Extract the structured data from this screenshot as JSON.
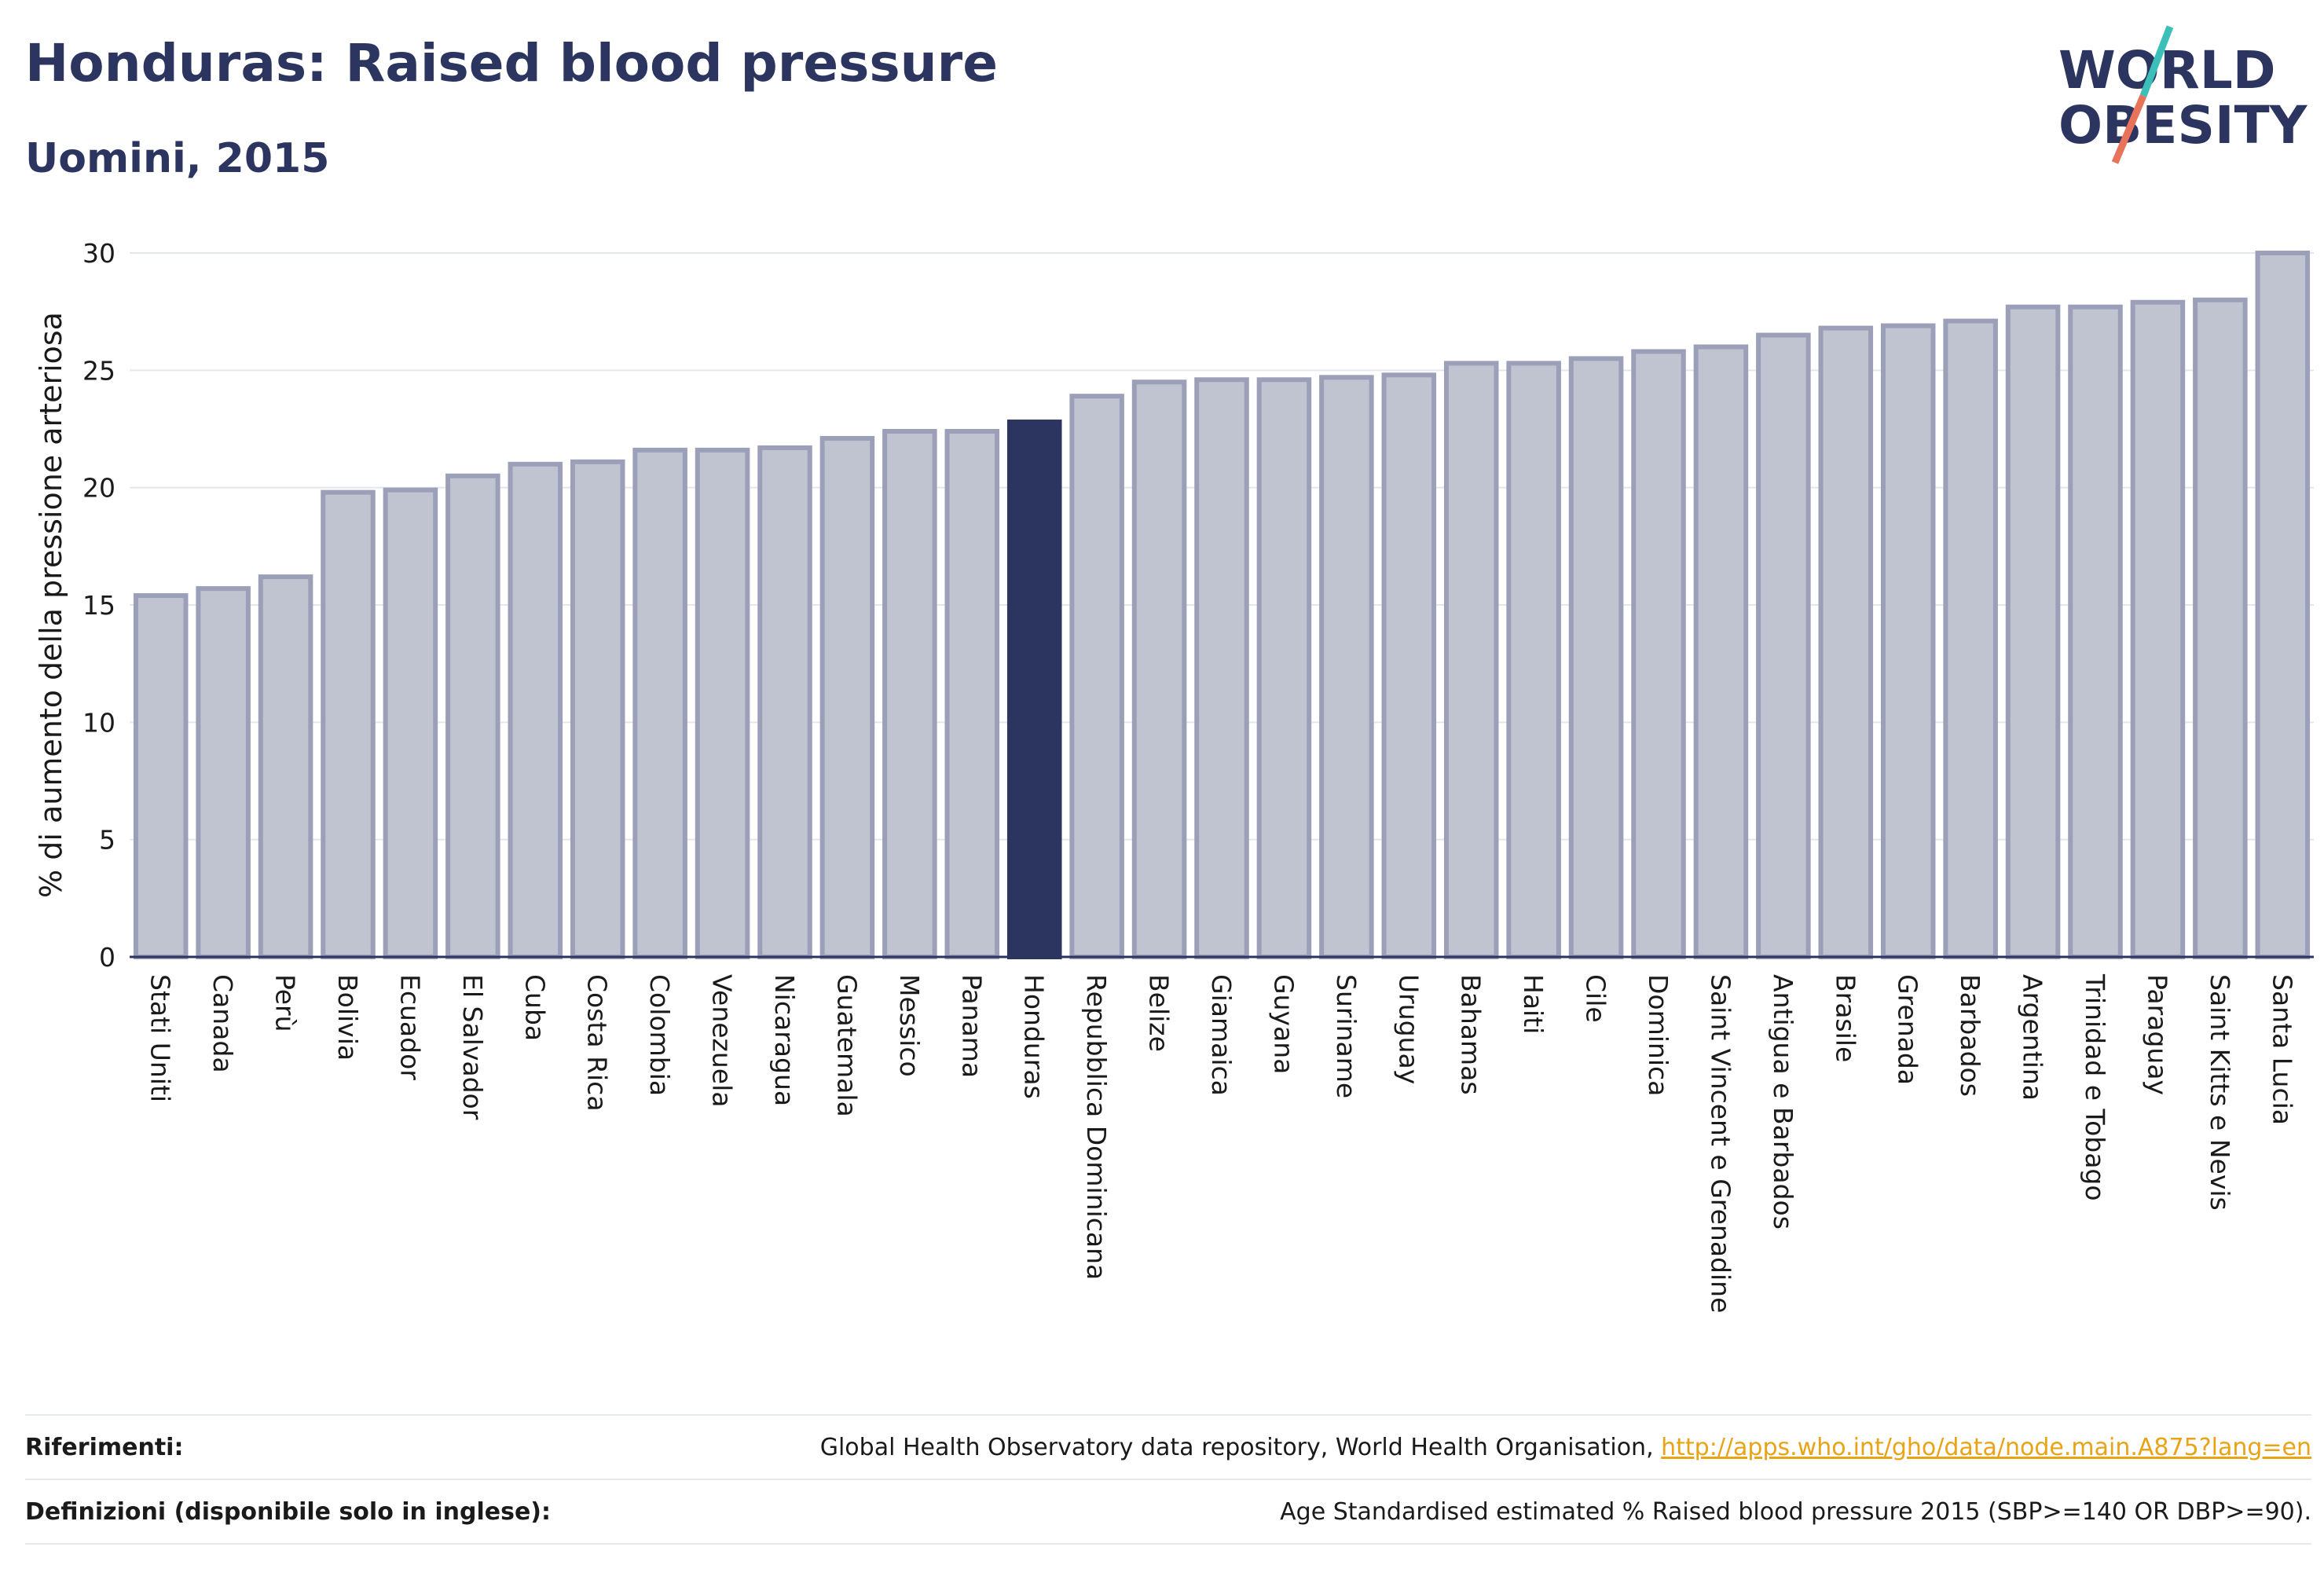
{
  "header": {
    "title": "Honduras: Raised blood pressure",
    "subtitle": "Uomini, 2015"
  },
  "logo": {
    "line1": "WORLD",
    "line2": "OBESITY",
    "colors": {
      "text": "#2b3560",
      "slash_top": "#3bbfb8",
      "slash_bottom": "#e8735a"
    }
  },
  "chart_data": {
    "type": "bar",
    "ylabel": "% di aumento della pressione arteriosa",
    "ylim": [
      0,
      30
    ],
    "yticks": [
      0,
      5,
      10,
      15,
      20,
      25,
      30
    ],
    "grid": true,
    "highlight": "Honduras",
    "colors": {
      "bar": "#c0c3d0",
      "bar_border": "#9ba0b8",
      "highlight": "#2b3560"
    },
    "categories": [
      "Stati Uniti",
      "Canada",
      "Perù",
      "Bolivia",
      "Ecuador",
      "El Salvador",
      "Cuba",
      "Costa Rica",
      "Colombia",
      "Venezuela",
      "Nicaragua",
      "Guatemala",
      "Messico",
      "Panama",
      "Honduras",
      "Repubblica Dominicana",
      "Belize",
      "Giamaica",
      "Guyana",
      "Suriname",
      "Uruguay",
      "Bahamas",
      "Haiti",
      "Cile",
      "Dominica",
      "Saint Vincent e Grenadine",
      "Antigua e Barbados",
      "Brasile",
      "Grenada",
      "Barbados",
      "Argentina",
      "Trinidad e Tobago",
      "Paraguay",
      "Saint Kitts e Nevis",
      "Santa Lucia"
    ],
    "values": [
      15.4,
      15.7,
      16.2,
      19.8,
      19.9,
      20.5,
      21.0,
      21.1,
      21.6,
      21.6,
      21.7,
      22.1,
      22.4,
      22.4,
      22.8,
      23.9,
      24.5,
      24.6,
      24.6,
      24.7,
      24.8,
      25.3,
      25.3,
      25.5,
      25.8,
      26.0,
      26.5,
      26.8,
      26.9,
      27.1,
      27.7,
      27.7,
      27.9,
      28.0,
      30.0
    ]
  },
  "footer": {
    "references_label": "Riferimenti:",
    "references_text": "Global Health Observatory data repository, World Health Organisation, ",
    "references_link": "http://apps.who.int/gho/data/node.main.A875?lang=en",
    "definitions_label": "Definizioni (disponibile solo in inglese):",
    "definitions_text": "Age Standardised estimated % Raised blood pressure 2015 (SBP>=140 OR DBP>=90)."
  }
}
